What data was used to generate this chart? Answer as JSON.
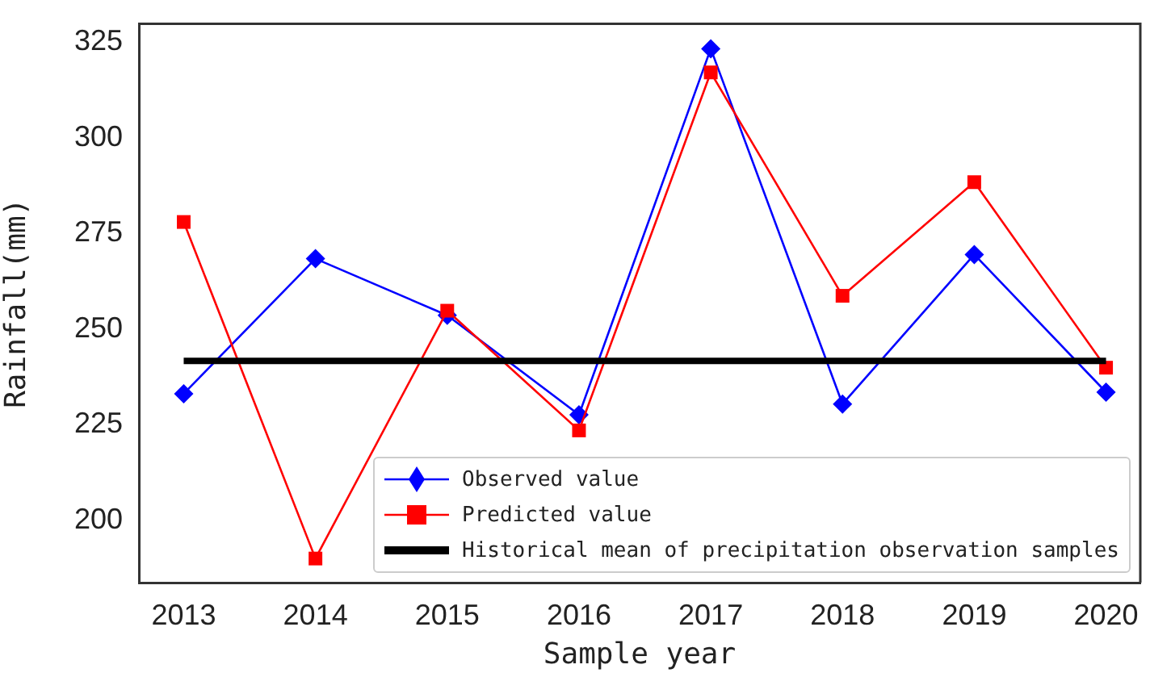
{
  "chart_data": {
    "type": "line",
    "xlabel": "Sample year",
    "ylabel": "Rainfall(mm)",
    "x": [
      2013,
      2014,
      2015,
      2016,
      2017,
      2018,
      2019,
      2020
    ],
    "series": [
      {
        "name": "Observed value",
        "color": "#0000ff",
        "marker": "diamond",
        "values": [
          233.1,
          268.4,
          253.6,
          227.6,
          323.3,
          230.4,
          269.5,
          233.5
        ]
      },
      {
        "name": "Predicted value",
        "color": "#ff0000",
        "marker": "square",
        "values": [
          278.0,
          190.0,
          254.8,
          223.5,
          317.1,
          258.7,
          288.4,
          239.9
        ]
      },
      {
        "name": "Historical mean of precipitation observation samples",
        "color": "#000000",
        "marker": "none",
        "x": [
          2013,
          2020
        ],
        "values": [
          241.7,
          241.7
        ]
      }
    ],
    "xlim": [
      2012.66,
      2020.26
    ],
    "xticks": [
      2013,
      2014,
      2015,
      2016,
      2017,
      2018,
      2019,
      2020
    ],
    "ylim": [
      183.7,
      329.8
    ],
    "yticks": [
      200,
      225,
      250,
      275,
      300,
      325
    ],
    "grid": false,
    "legend": "bottom right",
    "line_style": "solid"
  }
}
